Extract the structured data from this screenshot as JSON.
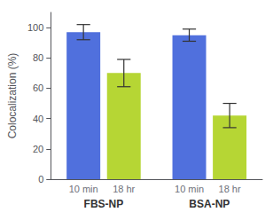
{
  "chart_data": {
    "type": "bar",
    "categories": [
      "FBS-NP",
      "BSA-NP"
    ],
    "series": [
      {
        "name": "10 min",
        "values": [
          97,
          95
        ],
        "errors": [
          5,
          4
        ]
      },
      {
        "name": "18 hr",
        "values": [
          70,
          42
        ],
        "errors": [
          9,
          8
        ]
      }
    ],
    "ylabel": "Colocalization (%)",
    "ylim": [
      0,
      110
    ],
    "yticks": [
      0,
      20,
      40,
      60,
      80,
      100
    ],
    "grid": false
  }
}
